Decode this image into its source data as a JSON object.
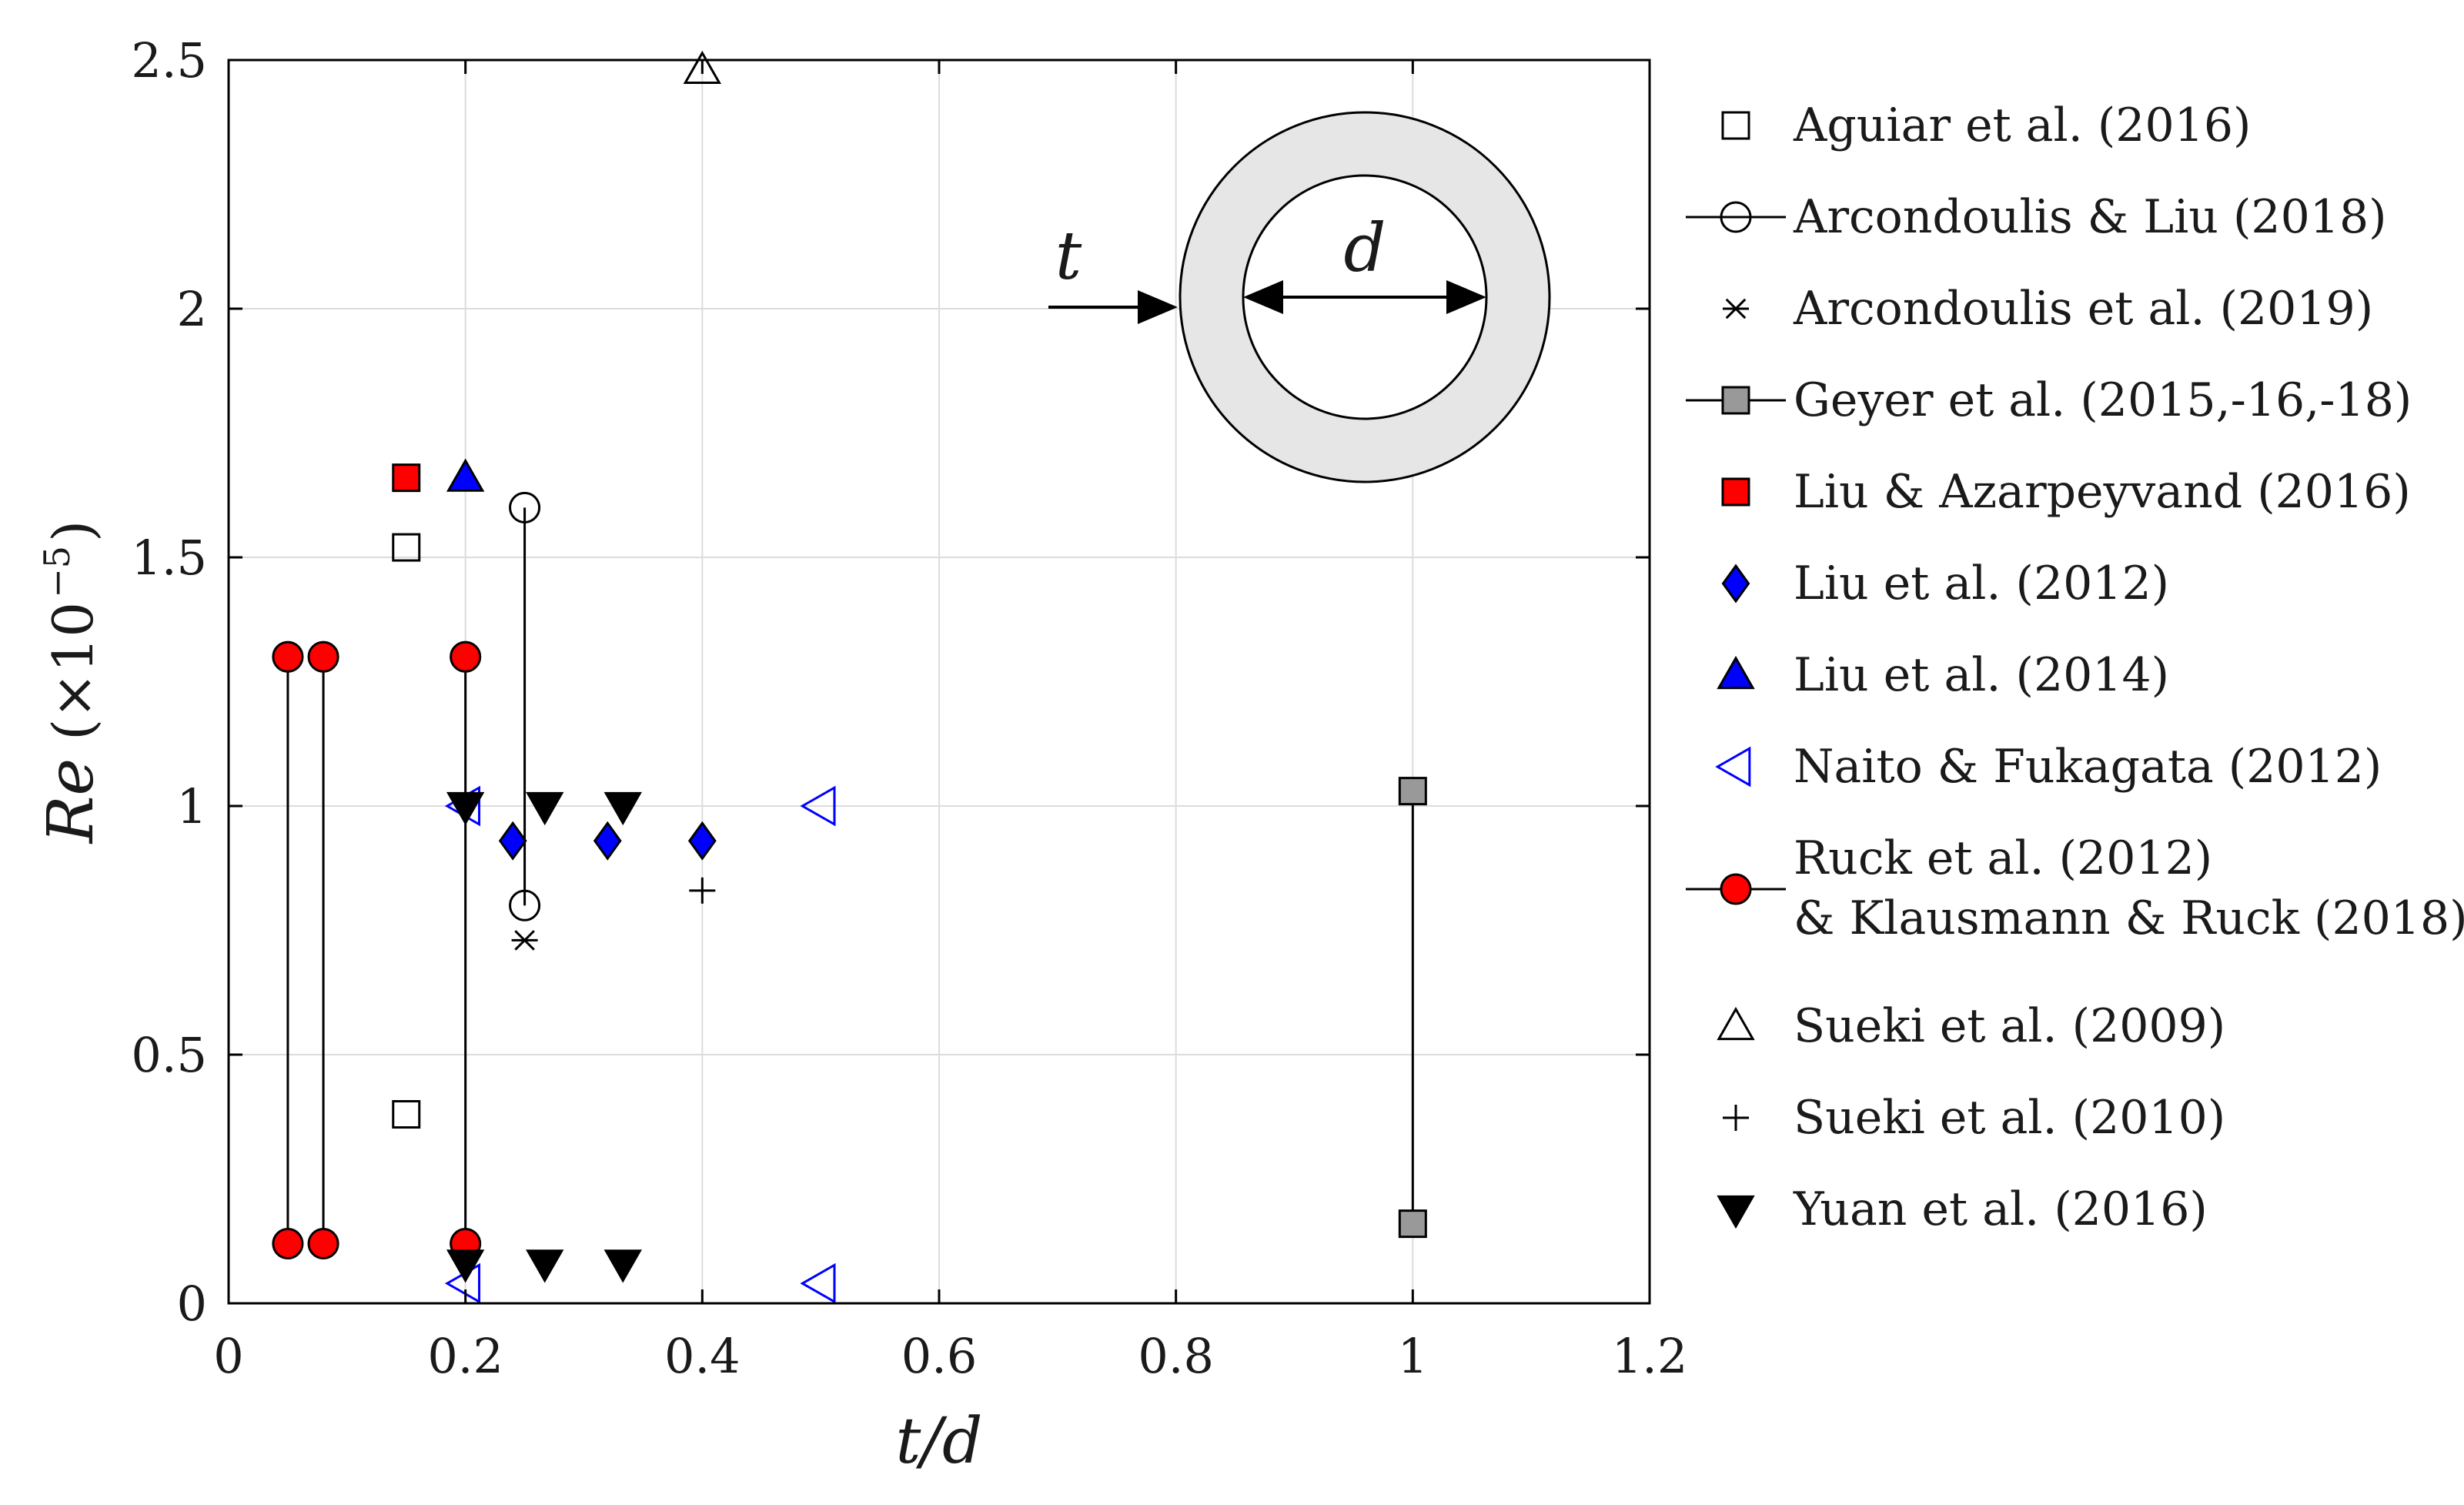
{
  "chart_data": {
    "type": "scatter",
    "title": "",
    "xlabel": "t/d",
    "ylabel_main": "Re",
    "ylabel_scale": "(×10",
    "ylabel_exponent": "−5",
    "ylabel_close": ")",
    "xlim": [
      0,
      1.2
    ],
    "ylim": [
      0,
      2.5
    ],
    "x_ticks": [
      0,
      0.2,
      0.4,
      0.6,
      0.8,
      1,
      1.2
    ],
    "x_tick_labels": [
      "0",
      "0.2",
      "0.4",
      "0.6",
      "0.8",
      "1",
      "1.2"
    ],
    "y_ticks": [
      0,
      0.5,
      1,
      1.5,
      2,
      2.5
    ],
    "y_tick_labels": [
      "0",
      "0.5",
      "1",
      "1.5",
      "2",
      "2.5"
    ],
    "grid": true,
    "legend_position": "outside-right",
    "inset": {
      "thickness_label": "t",
      "diameter_label": "d"
    },
    "series": [
      {
        "name": "Aguiar et al. (2016)",
        "label_lines": [
          "Aguiar et al. (2016)"
        ],
        "marker": "square",
        "fill": "none",
        "stroke": "#000000",
        "connect": false,
        "points": [
          [
            0.15,
            1.52
          ],
          [
            0.15,
            0.38
          ]
        ]
      },
      {
        "name": "Arcondoulis & Liu (2018)",
        "label_lines": [
          "Arcondoulis & Liu (2018)"
        ],
        "marker": "circle",
        "fill": "none",
        "stroke": "#000000",
        "connect": true,
        "points": [
          [
            0.25,
            1.6
          ],
          [
            0.25,
            0.8
          ]
        ]
      },
      {
        "name": "Arcondoulis et al. (2019)",
        "label_lines": [
          "Arcondoulis et al. (2019)"
        ],
        "marker": "asterisk",
        "fill": "none",
        "stroke": "#000000",
        "connect": false,
        "points": [
          [
            0.25,
            0.73
          ]
        ]
      },
      {
        "name": "Geyer et al. (2015,-16,-18)",
        "label_lines": [
          "Geyer et al. (2015,-16,-18)"
        ],
        "marker": "square",
        "fill": "#999999",
        "stroke": "#000000",
        "connect": true,
        "points": [
          [
            1.0,
            1.03
          ],
          [
            1.0,
            0.16
          ]
        ]
      },
      {
        "name": "Liu & Azarpeyvand (2016)",
        "label_lines": [
          "Liu & Azarpeyvand (2016)"
        ],
        "marker": "square",
        "fill": "#ff0000",
        "stroke": "#000000",
        "connect": false,
        "points": [
          [
            0.15,
            1.66
          ]
        ]
      },
      {
        "name": "Liu et al. (2012)",
        "label_lines": [
          "Liu et al. (2012)"
        ],
        "marker": "diamond",
        "fill": "#0000ff",
        "stroke": "#000000",
        "connect": false,
        "points": [
          [
            0.24,
            0.93
          ],
          [
            0.32,
            0.93
          ],
          [
            0.4,
            0.93
          ]
        ]
      },
      {
        "name": "Liu et al. (2014)",
        "label_lines": [
          "Liu et al. (2014)"
        ],
        "marker": "triangle-up",
        "fill": "#0000ff",
        "stroke": "#000000",
        "connect": false,
        "points": [
          [
            0.2,
            1.66
          ]
        ]
      },
      {
        "name": "Naito & Fukagata (2012)",
        "label_lines": [
          "Naito & Fukagata (2012)"
        ],
        "marker": "triangle-left",
        "fill": "none",
        "stroke": "#0000ff",
        "connect": false,
        "points": [
          [
            0.2,
            1.0
          ],
          [
            0.5,
            1.0
          ],
          [
            0.2,
            0.04
          ],
          [
            0.5,
            0.04
          ]
        ]
      },
      {
        "name": "Ruck et al. (2012) & Klausmann & Ruck (2018)",
        "label_lines": [
          "Ruck et al. (2012)",
          "& Klausmann & Ruck (2018)"
        ],
        "marker": "circle",
        "fill": "#ff0000",
        "stroke": "#000000",
        "connect": "pairs",
        "points": [
          [
            0.05,
            1.3
          ],
          [
            0.05,
            0.12
          ],
          [
            0.08,
            1.3
          ],
          [
            0.08,
            0.12
          ],
          [
            0.2,
            1.3
          ],
          [
            0.2,
            0.12
          ]
        ]
      },
      {
        "name": "Sueki et al. (2009)",
        "label_lines": [
          "Sueki et al. (2009)"
        ],
        "marker": "triangle-up",
        "fill": "none",
        "stroke": "#000000",
        "connect": false,
        "points": [
          [
            0.4,
            2.48
          ]
        ]
      },
      {
        "name": "Sueki et al. (2010)",
        "label_lines": [
          "Sueki et al. (2010)"
        ],
        "marker": "plus",
        "fill": "none",
        "stroke": "#000000",
        "connect": false,
        "points": [
          [
            0.4,
            0.83
          ]
        ]
      },
      {
        "name": "Yuan et al. (2016)",
        "label_lines": [
          "Yuan et al. (2016)"
        ],
        "marker": "triangle-down",
        "fill": "#000000",
        "stroke": "#000000",
        "connect": false,
        "points": [
          [
            0.2,
            1.0
          ],
          [
            0.267,
            1.0
          ],
          [
            0.333,
            1.0
          ],
          [
            0.2,
            0.08
          ],
          [
            0.267,
            0.08
          ],
          [
            0.333,
            0.08
          ]
        ]
      }
    ]
  }
}
